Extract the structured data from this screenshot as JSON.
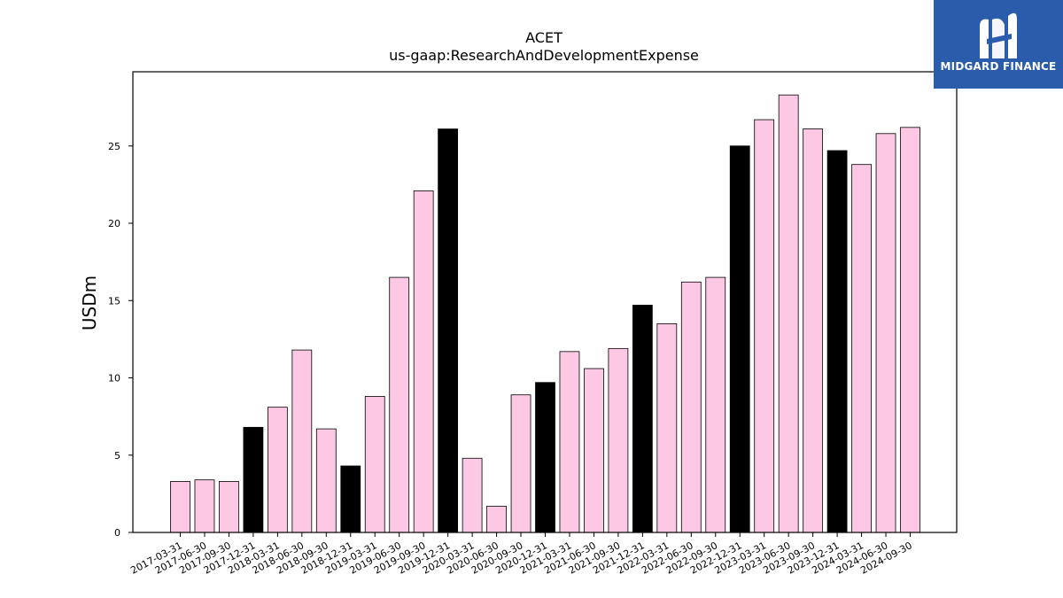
{
  "logo": {
    "text": "MIDGARD FINANCE",
    "color": "#2b5bab",
    "icon": "midgard-logo-icon"
  },
  "chart_data": {
    "type": "bar",
    "title": "ACET",
    "subtitle": "us-gaap:ResearchAndDevelopmentExpense",
    "xlabel": "",
    "ylabel": "USDm",
    "ylim": [
      0,
      29.8
    ],
    "yticks": [
      0,
      5,
      10,
      15,
      20,
      25
    ],
    "grid": false,
    "colors": {
      "quarter": "#fcc8e3",
      "year_end": "#000000",
      "edge": "#000000"
    },
    "categories": [
      "2017-03-31",
      "2017-06-30",
      "2017-09-30",
      "2017-12-31",
      "2018-03-31",
      "2018-06-30",
      "2018-09-30",
      "2018-12-31",
      "2019-03-31",
      "2019-06-30",
      "2019-09-30",
      "2019-12-31",
      "2020-03-31",
      "2020-06-30",
      "2020-09-30",
      "2020-12-31",
      "2021-03-31",
      "2021-06-30",
      "2021-09-30",
      "2021-12-31",
      "2022-03-31",
      "2022-06-30",
      "2022-09-30",
      "2022-12-31",
      "2023-03-31",
      "2023-06-30",
      "2023-09-30",
      "2023-12-31",
      "2024-03-31",
      "2024-06-30",
      "2024-09-30"
    ],
    "values": [
      3.3,
      3.4,
      3.3,
      6.8,
      8.1,
      11.8,
      6.7,
      4.3,
      8.8,
      16.5,
      22.1,
      26.1,
      4.8,
      1.7,
      8.9,
      9.7,
      11.7,
      10.6,
      11.9,
      14.7,
      13.5,
      16.2,
      16.5,
      25.0,
      26.7,
      28.3,
      26.1,
      24.7,
      23.8,
      25.8,
      26.2
    ]
  }
}
